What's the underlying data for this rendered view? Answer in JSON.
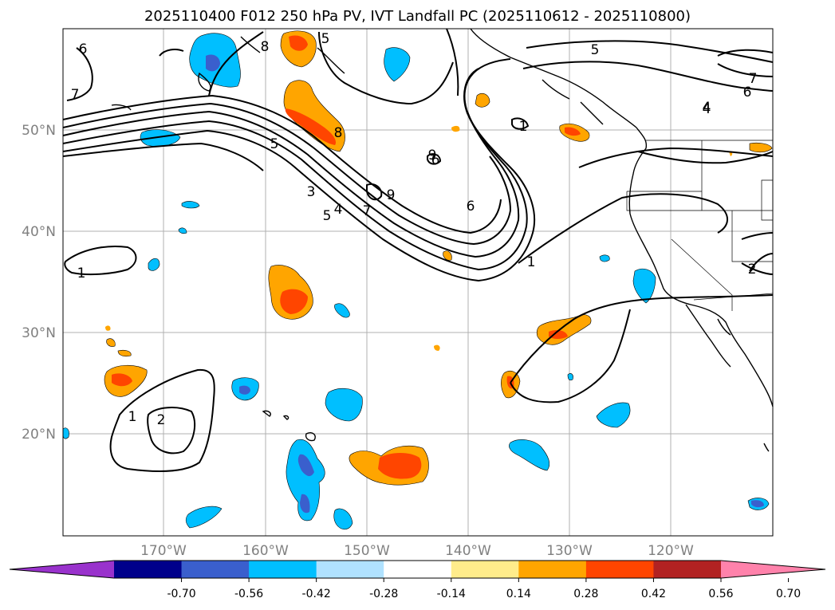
{
  "title": "2025110400 F012 250 hPa PV, IVT Landfall PC (2025110612 - 2025110800)",
  "map": {
    "lat_labels": [
      "50°N",
      "40°N",
      "30°N",
      "20°N"
    ],
    "lon_labels": [
      "170°W",
      "160°W",
      "150°W",
      "140°W",
      "130°W",
      "120°W"
    ],
    "contour_labels": [
      "6",
      "7",
      "5",
      "8",
      "5",
      "4",
      "7",
      "6",
      "4",
      "5",
      "8",
      "1",
      "9",
      "6",
      "9",
      "3",
      "4",
      "7",
      "5",
      "6",
      "1",
      "1",
      "2",
      "1",
      "2"
    ],
    "land_color": "#ffffff",
    "grid_color": "#b0b0b0"
  },
  "colorbar": {
    "ticks": [
      "-0.70",
      "-0.56",
      "-0.42",
      "-0.28",
      "-0.14",
      "0.14",
      "0.28",
      "0.42",
      "0.56",
      "0.70"
    ],
    "colors": [
      "#9932cc",
      "#00008b",
      "#3a5fcd",
      "#00bfff",
      "#b0e2ff",
      "#ffffff",
      "#ffec8b",
      "#ffa500",
      "#ff4500",
      "#b22222",
      "#ff82ab"
    ]
  }
}
